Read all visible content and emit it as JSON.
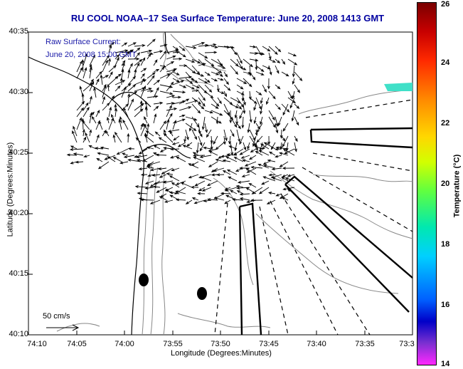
{
  "title": "RU COOL   NOAA–17  Sea Surface Temperature:  June 20, 2008 1413 GMT",
  "current_label_line1": "Raw Surface Current:",
  "current_label_line2": "June 20, 2008 15:00 GMT",
  "y_axis": {
    "label": "Latitude (Degrees:Minutes)",
    "ticks": [
      "40:35",
      "40:30",
      "40:25",
      "40:20",
      "40:15",
      "40:10"
    ]
  },
  "x_axis": {
    "label": "Longitude (Degrees:Minutes)",
    "ticks": [
      "74:10",
      "74:05",
      "74:00",
      "73:55",
      "73:50",
      "73:45",
      "73:40",
      "73:35",
      "73:3"
    ]
  },
  "colorbar": {
    "label": "Temperature (°C)",
    "ticks": [
      "26",
      "24",
      "22",
      "20",
      "18",
      "16",
      "14"
    ],
    "min": 14,
    "max": 26
  },
  "scale_label": "50 cm/s",
  "colors": {
    "title": "#0000a0",
    "note": "#1a1aa8",
    "coast": "#000000",
    "bathymetry": "#808080",
    "sst_patch": "#40e0c8"
  }
}
